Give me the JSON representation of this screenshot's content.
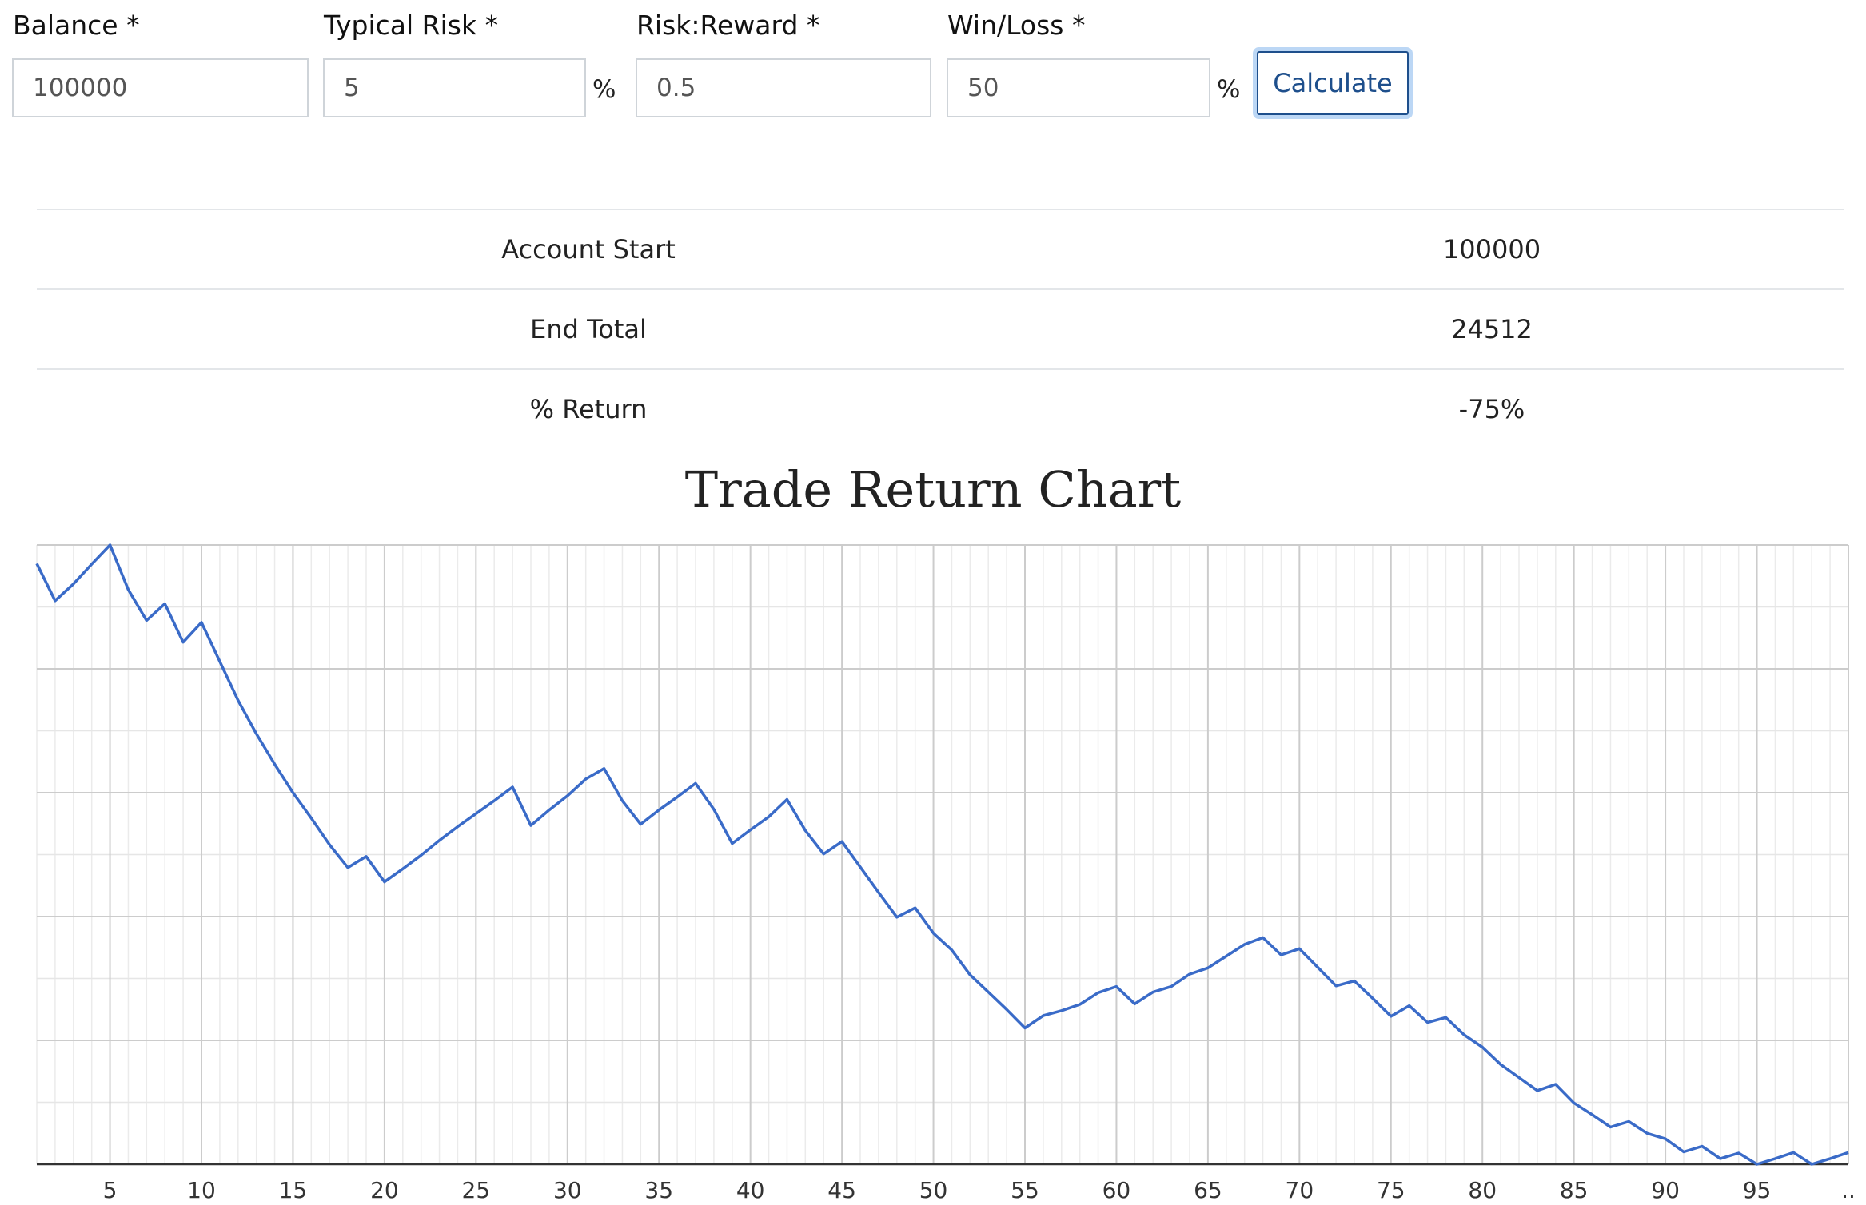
{
  "form": {
    "balance": {
      "label": "Balance *",
      "value": "100000"
    },
    "typical_risk": {
      "label": "Typical Risk *",
      "value": "5",
      "unit": "%"
    },
    "risk_reward": {
      "label": "Risk:Reward *",
      "value": "0.5"
    },
    "win_loss": {
      "label": "Win/Loss *",
      "value": "50",
      "unit": "%"
    },
    "calculate_label": "Calculate"
  },
  "summary": {
    "rows": [
      {
        "label": "Account Start",
        "value": "100000"
      },
      {
        "label": "End Total",
        "value": "24512"
      },
      {
        "label": "% Return",
        "value": "-75%"
      }
    ]
  },
  "chart_data": {
    "type": "line",
    "title": "Trade Return Chart",
    "x_tick_labels": [
      "5",
      "10",
      "15",
      "20",
      "25",
      "30",
      "35",
      "40",
      "45",
      "50",
      "55",
      "60",
      "65",
      "70",
      "75",
      "80",
      "85",
      "90",
      "95",
      ".."
    ],
    "x_ticks": [
      5,
      10,
      15,
      20,
      25,
      30,
      35,
      40,
      45,
      50,
      55,
      60,
      65,
      70,
      75,
      80,
      85,
      90,
      95,
      100
    ],
    "xlim": [
      1,
      100
    ],
    "grid": true,
    "line_color": "#3a6bc8",
    "series": [
      {
        "x": [
          1,
          2,
          3,
          4,
          5,
          6,
          7,
          8,
          9,
          10,
          11,
          12,
          13,
          14,
          15,
          16,
          17,
          18,
          19,
          20,
          21,
          22,
          23,
          24,
          25,
          26,
          27,
          28,
          29,
          30,
          31,
          32,
          33,
          34,
          35,
          36,
          37,
          38,
          39,
          40,
          41,
          42,
          43,
          44,
          45,
          46,
          47,
          48,
          49,
          50,
          51,
          52,
          53,
          54,
          55,
          56,
          57,
          58,
          59,
          60,
          61,
          62,
          63,
          64,
          65,
          66,
          67,
          68,
          69,
          70,
          71,
          72,
          73,
          74,
          75,
          76,
          77,
          78,
          79,
          80,
          81,
          82,
          83,
          84,
          85,
          86,
          87,
          88,
          89,
          90,
          91,
          92,
          93,
          94,
          95,
          96,
          97,
          98,
          99,
          100
        ],
        "values": [
          97,
          91,
          93.7,
          96.9,
          100,
          92.8,
          87.8,
          90.5,
          84.3,
          87.5,
          81.2,
          74.9,
          69.5,
          64.6,
          60,
          55.9,
          51.6,
          47.9,
          49.7,
          45.6,
          47.7,
          49.9,
          52.3,
          54.5,
          56.6,
          58.7,
          60.9,
          54.7,
          57.2,
          59.5,
          62.2,
          63.9,
          58.7,
          54.9,
          57.2,
          59.3,
          61.5,
          57.3,
          51.8,
          54,
          56.1,
          58.9,
          53.9,
          50.1,
          52.1,
          48,
          43.9,
          39.9,
          41.4,
          37.3,
          34.6,
          30.6,
          27.8,
          25,
          22,
          24,
          24.8,
          25.8,
          27.7,
          28.7,
          25.9,
          27.8,
          28.7,
          30.7,
          31.7,
          33.6,
          35.5,
          36.6,
          33.8,
          34.8,
          31.8,
          28.8,
          29.6,
          26.8,
          23.9,
          25.6,
          22.9,
          23.7,
          20.9,
          18.9,
          16.1,
          14,
          11.9,
          12.9,
          9.9,
          8,
          6,
          6.9,
          5,
          4.1,
          2,
          2.9,
          0.9,
          1.8,
          0,
          0.9,
          1.9,
          0,
          0.9,
          1.9
        ]
      }
    ]
  }
}
